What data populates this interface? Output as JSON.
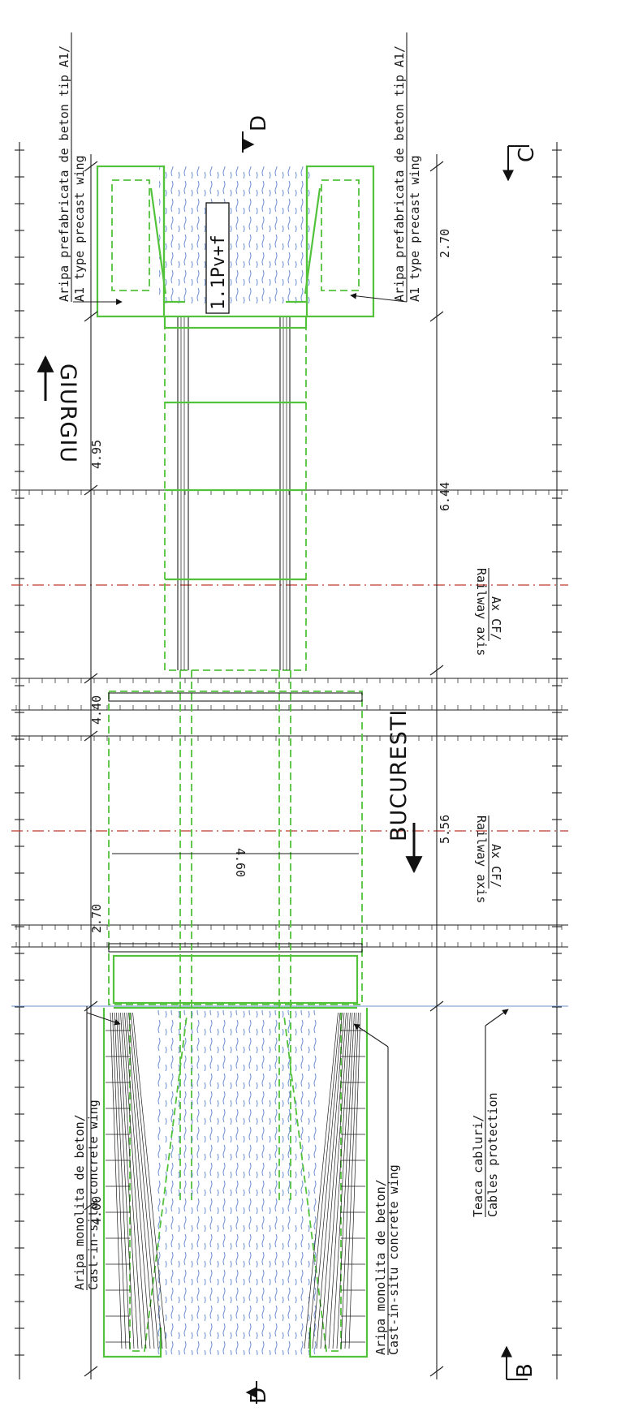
{
  "labels": {
    "wing_precast_top": "Aripa prefabricata de beton tip A1/",
    "wing_precast_top_en": "A1 type precast wing",
    "wing_precast_bottom": "Aripa prefabricata de beton tip A1/",
    "wing_precast_bottom_en": "A1 type precast wing",
    "wing_monolith_top": "Aripa monolita de beton/",
    "wing_monolith_top_en": "Cast-in-situ concrete wing",
    "wing_monolith_bottom": "Aripa monolita de beton/",
    "wing_monolith_bottom_en": "Cast-in-situ concrete wing",
    "cables": "Teaca cabluri/",
    "cables_en": "Cables protection",
    "rail_axis_1": "Ax CF/",
    "rail_axis_1_en": "Railway axis",
    "rail_axis_2": "Ax CF/",
    "rail_axis_2_en": "Railway axis",
    "code": "1.1Pv+f"
  },
  "directions": {
    "giurgiu": "GIURGIU",
    "bucuresti": "BUCURESTI"
  },
  "sections": {
    "d_top": "D",
    "d_bottom": "D",
    "c": "C",
    "b": "B"
  },
  "dimensions": {
    "top_4_95": "4.95",
    "top_4_40": "4.40",
    "top_2_70": "2.70",
    "top_4_00": "4.00",
    "bot_2_70": "2.70",
    "bot_6_44": "6.44",
    "bot_5_56": "5.56",
    "mid_4_60": "4.60"
  },
  "colors": {
    "structure": "#52c23b",
    "linework": "#1e1e1e",
    "hatch": "#6c8fd0",
    "railway_axis": "#c0392b"
  }
}
